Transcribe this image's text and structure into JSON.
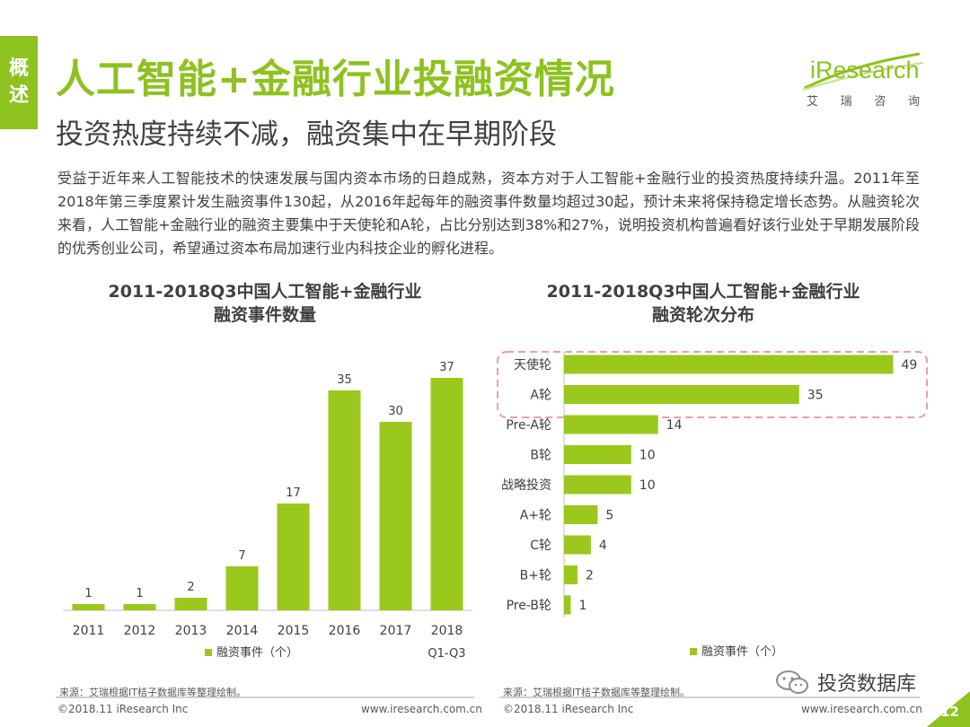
{
  "side_tab": [
    "概",
    "述"
  ],
  "title": "人工智能+金融行业投融资情况",
  "subtitle": "投资热度持续不减，融资集中在早期阶段",
  "logo": {
    "wordmark": "iResearch",
    "sub_chars": [
      "艾",
      "瑞",
      "咨",
      "询"
    ]
  },
  "body_text": "受益于近年来人工智能技术的快速发展与国内资本市场的日趋成熟，资本方对于人工智能+金融行业的投资热度持续升温。2011年至2018年第三季度累计发生融资事件130起，从2016年起每年的融资事件数量均超过30起，预计未来将保持稳定增长态势。从融资轮次来看，人工智能+金融行业的融资主要集中于天使轮和A轮，占比分别达到38%和27%，说明投资机构普遍看好该行业处于早期发展阶段的优秀创业公司，希望通过资本布局加速行业内科技企业的孵化进程。",
  "colors": {
    "accent": "#8dc21f",
    "bar": "#9ac81c",
    "highlight_box": "#e8a0a8"
  },
  "chart_data": [
    {
      "type": "bar",
      "title_line1": "2011-2018Q3中国人工智能+金融行业",
      "title_line2": "融资事件数量",
      "categories": [
        "2011",
        "2012",
        "2013",
        "2014",
        "2015",
        "2016",
        "2017",
        "2018"
      ],
      "category_note": "Q1-Q3",
      "values": [
        1,
        1,
        2,
        7,
        17,
        35,
        30,
        37
      ],
      "legend": "融资事件（个）",
      "ylim": [
        0,
        40
      ]
    },
    {
      "type": "bar",
      "orientation": "horizontal",
      "title_line1": "2011-2018Q3中国人工智能+金融行业",
      "title_line2": "融资轮次分布",
      "categories": [
        "天使轮",
        "A轮",
        "Pre-A轮",
        "B轮",
        "战略投资",
        "A+轮",
        "C轮",
        "B+轮",
        "Pre-B轮"
      ],
      "values": [
        49,
        35,
        14,
        10,
        10,
        5,
        4,
        2,
        1
      ],
      "highlighted": [
        "天使轮",
        "A轮"
      ],
      "legend": "融资事件（个）",
      "xlim": [
        0,
        50
      ]
    }
  ],
  "source_text": "来源：艾瑞根据IT桔子数据库等整理绘制。",
  "footer": {
    "copyright": "©2018.11 iResearch Inc",
    "url": "www.iresearch.com.cn"
  },
  "wechat": "投资数据库",
  "page_number": "12"
}
